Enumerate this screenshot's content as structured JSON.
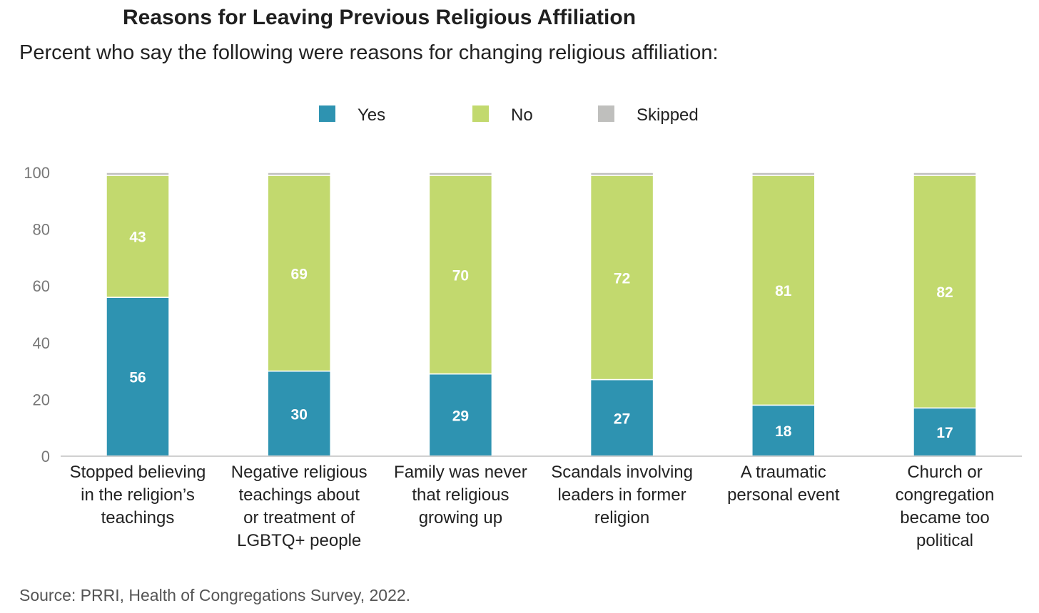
{
  "header": {
    "title": "Reasons for Leaving Previous Religious Affiliation",
    "subtitle": "Percent who say the following were reasons for changing religious affiliation:"
  },
  "footer": {
    "source": "Source: PRRI, Health of Congregations Survey, 2022."
  },
  "chart_data": {
    "type": "bar",
    "stacked": true,
    "categories": [
      [
        "Stopped believing",
        "in the religion’s",
        "teachings"
      ],
      [
        "Negative religious",
        "teachings about",
        "or treatment of",
        "LGBTQ+ people"
      ],
      [
        "Family was never",
        "that religious",
        "growing up"
      ],
      [
        "Scandals involving",
        "leaders in former",
        "religion"
      ],
      [
        "A traumatic",
        "personal event"
      ],
      [
        "Church or",
        "congregation",
        "became too",
        "political"
      ]
    ],
    "series": [
      {
        "name": "Yes",
        "color": "#2e93b1",
        "values": [
          56,
          30,
          29,
          27,
          18,
          17
        ],
        "show_labels": true
      },
      {
        "name": "No",
        "color": "#c2d96e",
        "values": [
          43,
          69,
          70,
          72,
          81,
          82
        ],
        "show_labels": true
      },
      {
        "name": "Skipped",
        "color": "#bfbfbd",
        "values": [
          1,
          1,
          1,
          1,
          1,
          1
        ],
        "show_labels": false
      }
    ],
    "yticks": [
      0,
      20,
      40,
      60,
      80,
      100
    ],
    "ylim": [
      0,
      100
    ],
    "grid": false,
    "legend_position": "top"
  }
}
